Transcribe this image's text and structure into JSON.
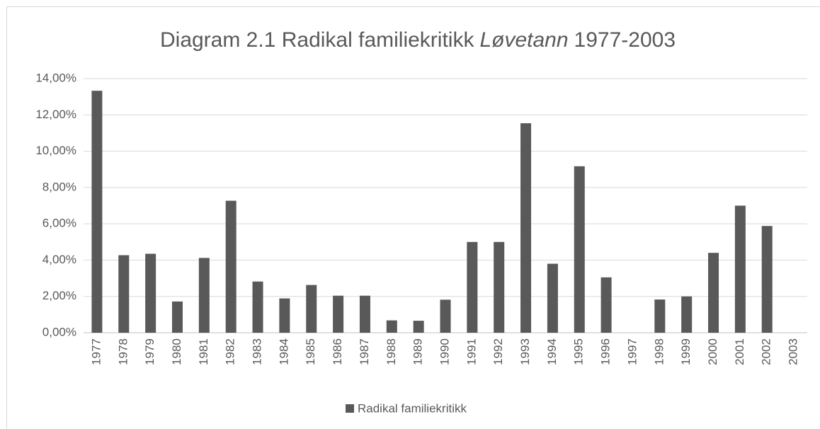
{
  "chart_data": {
    "type": "bar",
    "title": [
      "Diagram 2.1 Radikal familiekritikk",
      "Løvetann",
      "1977-2003"
    ],
    "title_italic": [
      false,
      true,
      false
    ],
    "categories": [
      "1977",
      "1978",
      "1979",
      "1980",
      "1981",
      "1982",
      "1983",
      "1984",
      "1985",
      "1986",
      "1987",
      "1988",
      "1989",
      "1990",
      "1991",
      "1992",
      "1993",
      "1994",
      "1995",
      "1996",
      "1997",
      "1998",
      "1999",
      "2000",
      "2001",
      "2002",
      "2003"
    ],
    "series": [
      {
        "name": "Radikal familiekritikk",
        "color": "#595959",
        "values": [
          13.33,
          4.27,
          4.35,
          1.72,
          4.12,
          7.27,
          2.82,
          1.89,
          2.63,
          2.04,
          2.04,
          0.68,
          0.66,
          1.82,
          5.0,
          5.0,
          11.54,
          3.8,
          9.17,
          3.05,
          0,
          1.83,
          2.0,
          4.4,
          7.0,
          5.88,
          0
        ]
      }
    ],
    "ylim": [
      0,
      14
    ],
    "yticks": [
      {
        "value": 0,
        "label": "0,00%"
      },
      {
        "value": 2,
        "label": "2,00%"
      },
      {
        "value": 4,
        "label": "4,00%"
      },
      {
        "value": 6,
        "label": "6,00%"
      },
      {
        "value": 8,
        "label": "8,00%"
      },
      {
        "value": 10,
        "label": "10,00%"
      },
      {
        "value": 12,
        "label": "12,00%"
      },
      {
        "value": 14,
        "label": "14,00%"
      }
    ],
    "grid": true,
    "legend": "bottom"
  }
}
